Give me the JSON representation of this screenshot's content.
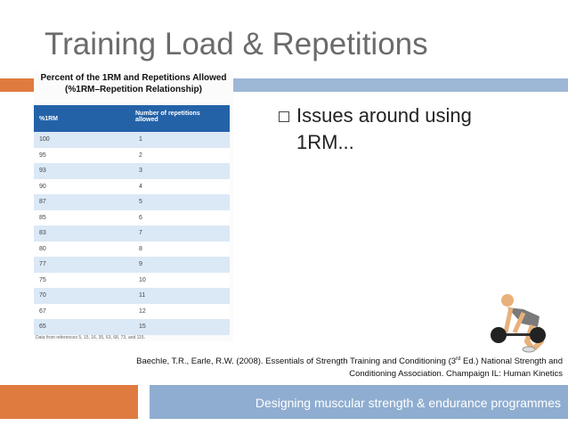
{
  "header": {
    "title": "Training Load & Repetitions"
  },
  "table": {
    "caption": [
      "Percent of the 1RM and Repetitions Allowed",
      "(%1RM–Repetition Relationship)"
    ],
    "columns": [
      "%1RM",
      "Number of repetitions allowed"
    ],
    "rows": [
      [
        "100",
        "1"
      ],
      [
        "95",
        "2"
      ],
      [
        "93",
        "3"
      ],
      [
        "90",
        "4"
      ],
      [
        "87",
        "5"
      ],
      [
        "85",
        "6"
      ],
      [
        "83",
        "7"
      ],
      [
        "80",
        "8"
      ],
      [
        "77",
        "9"
      ],
      [
        "75",
        "10"
      ],
      [
        "70",
        "11"
      ],
      [
        "67",
        "12"
      ],
      [
        "65",
        "15"
      ]
    ],
    "source": "Data from references 5, 15, 16, 35, 63, 68, 73, and 115."
  },
  "bullet": {
    "lines": [
      "Issues around using",
      "1RM..."
    ]
  },
  "citation": {
    "line1": "Baechle, T.R., Earle, R.W. (2008). Essentials of Strength Training and Conditioning (3",
    "superscript": "rd",
    "line1_end": " Ed.) National Strength and",
    "line2": "Conditioning Association. Champaign IL: Human Kinetics"
  },
  "footer": {
    "text": "Designing muscular strength & endurance programmes"
  }
}
